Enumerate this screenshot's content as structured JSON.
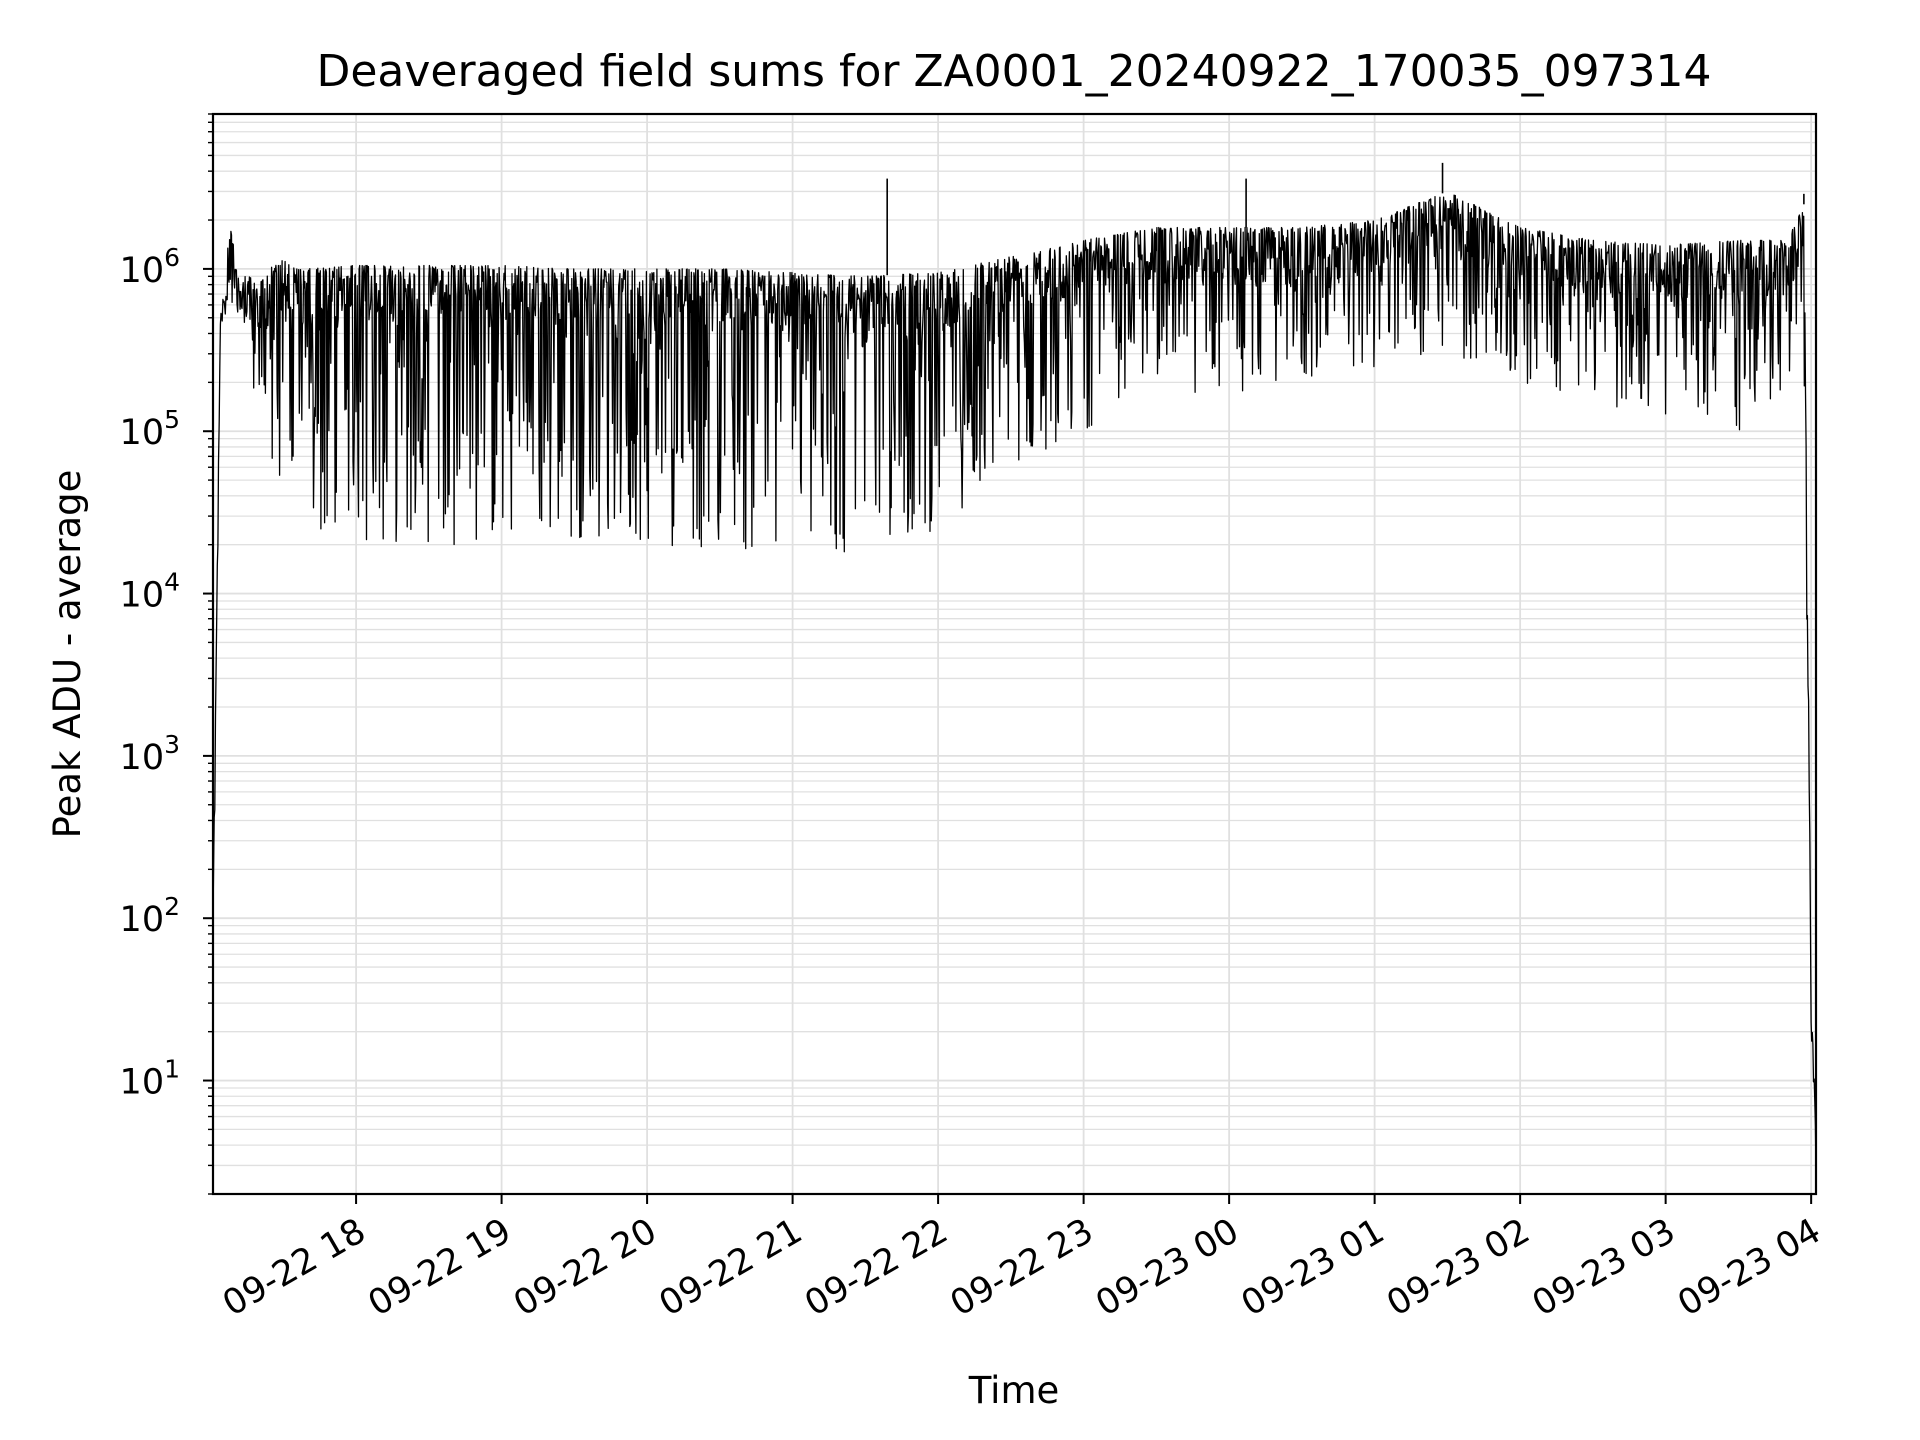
{
  "chart_data": {
    "type": "line",
    "title": "Deaveraged field sums for ZA0001_20240922_170035_097314",
    "xlabel": "Time",
    "ylabel": "Peak ADU - average",
    "yscale": "log",
    "ylim": [
      2,
      9000000
    ],
    "xlim": [
      "2024-09-22 17:01",
      "2024-09-23 04:02"
    ],
    "grid": true,
    "legend": "none",
    "line_color": "#000000",
    "grid_color": "#e0e0e0",
    "x_tick_labels": [
      {
        "label": "09-22 18",
        "time": "2024-09-22 18:00"
      },
      {
        "label": "09-22 19",
        "time": "2024-09-22 19:00"
      },
      {
        "label": "09-22 20",
        "time": "2024-09-22 20:00"
      },
      {
        "label": "09-22 21",
        "time": "2024-09-22 21:00"
      },
      {
        "label": "09-22 22",
        "time": "2024-09-22 22:00"
      },
      {
        "label": "09-22 23",
        "time": "2024-09-22 23:00"
      },
      {
        "label": "09-23 00",
        "time": "2024-09-23 00:00"
      },
      {
        "label": "09-23 01",
        "time": "2024-09-23 01:00"
      },
      {
        "label": "09-23 02",
        "time": "2024-09-23 02:00"
      },
      {
        "label": "09-23 03",
        "time": "2024-09-23 03:00"
      },
      {
        "label": "09-23 04",
        "time": "2024-09-23 04:00"
      }
    ],
    "y_tick_labels": [
      {
        "base": "10",
        "exp": "1",
        "value": 10
      },
      {
        "base": "10",
        "exp": "2",
        "value": 100
      },
      {
        "base": "10",
        "exp": "3",
        "value": 1000
      },
      {
        "base": "10",
        "exp": "4",
        "value": 10000
      },
      {
        "base": "10",
        "exp": "5",
        "value": 100000
      },
      {
        "base": "10",
        "exp": "6",
        "value": 1000000
      }
    ],
    "series": [
      {
        "style": "dense oscillating line",
        "envelope": {
          "x": [
            "2024-09-22 17:01",
            "2024-09-22 17:04",
            "2024-09-22 17:08",
            "2024-09-22 17:12",
            "2024-09-22 17:20",
            "2024-09-22 17:28",
            "2024-09-22 17:35",
            "2024-09-22 17:40",
            "2024-09-22 18:00",
            "2024-09-22 18:30",
            "2024-09-22 19:00",
            "2024-09-22 19:30",
            "2024-09-22 20:00",
            "2024-09-22 20:30",
            "2024-09-22 21:00",
            "2024-09-22 21:30",
            "2024-09-22 22:00",
            "2024-09-22 22:30",
            "2024-09-22 23:00",
            "2024-09-22 23:30",
            "2024-09-23 00:00",
            "2024-09-23 00:30",
            "2024-09-23 01:00",
            "2024-09-23 01:30",
            "2024-09-23 02:00",
            "2024-09-23 02:30",
            "2024-09-23 03:00",
            "2024-09-23 03:30",
            "2024-09-23 03:50",
            "2024-09-23 03:57",
            "2024-09-23 04:00",
            "2024-09-23 04:02"
          ],
          "upper": [
            100,
            500000,
            1800000,
            1000000,
            800000,
            1200000,
            1000000,
            1000000,
            1050000,
            1050000,
            1050000,
            1000000,
            1000000,
            1000000,
            950000,
            900000,
            950000,
            1200000,
            1500000,
            1800000,
            1800000,
            1800000,
            2000000,
            3000000,
            1800000,
            1500000,
            1400000,
            1500000,
            1500000,
            2500000,
            50,
            4
          ],
          "lower": [
            100,
            400000,
            700000,
            400000,
            100000,
            50000,
            30000,
            20000,
            20000,
            20000,
            20000,
            22000,
            20000,
            18000,
            17000,
            16000,
            25000,
            60000,
            100000,
            200000,
            150000,
            200000,
            250000,
            300000,
            200000,
            150000,
            120000,
            100000,
            150000,
            300000,
            20,
            4
          ]
        },
        "spikes": [
          {
            "x": "2024-09-22 21:39",
            "y": 3600000
          },
          {
            "x": "2024-09-23 00:07",
            "y": 3600000
          },
          {
            "x": "2024-09-23 01:28",
            "y": 4500000
          },
          {
            "x": "2024-09-23 03:57",
            "y": 2900000
          }
        ]
      }
    ]
  }
}
